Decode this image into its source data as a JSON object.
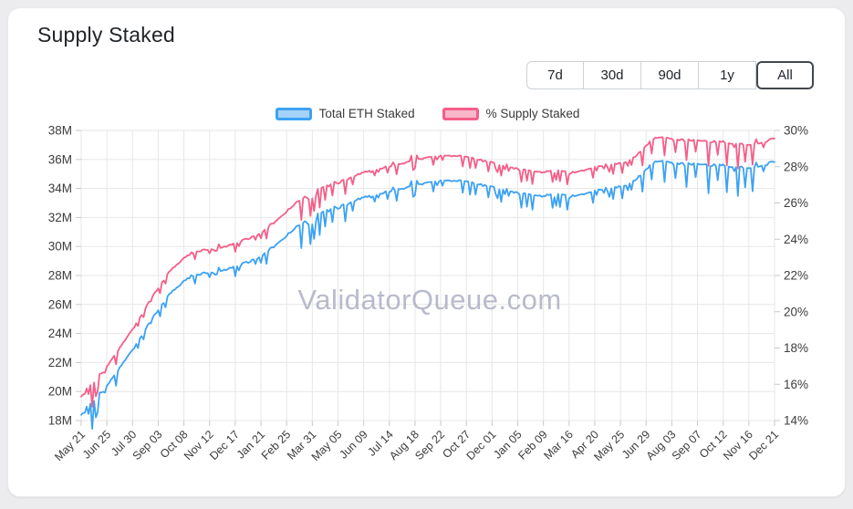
{
  "header": {
    "title": "Supply Staked",
    "active_range": "All",
    "ranges": [
      {
        "label": "7d"
      },
      {
        "label": "30d"
      },
      {
        "label": "90d"
      },
      {
        "label": "1y"
      },
      {
        "label": "All"
      }
    ]
  },
  "watermark": "ValidatorQueue.com",
  "colors": {
    "background": "#ececee",
    "card": "#ffffff",
    "grid": "#e7e7e7",
    "tick": "#c9c9c9",
    "axis_text": "#3c3c3c",
    "active_button_border": "#42474e",
    "blue_line": "#3ba2f4",
    "blue_legend_fill": "#a5d2f8",
    "pink_line": "#f45e88",
    "pink_legend_fill": "#f8b6c9",
    "watermark": "#a7abbf"
  },
  "chart_data": {
    "type": "line",
    "title": "Supply Staked",
    "grid": true,
    "legend_position": "top",
    "x_unit": "days_since_first_label",
    "x_span_days": 945,
    "x_label_interval_days": 35,
    "x_labels": [
      "May 21",
      "Jun 25",
      "Jul 30",
      "Sep 03",
      "Oct 08",
      "Nov 12",
      "Dec 17",
      "Jan 21",
      "Feb 25",
      "Mar 31",
      "May 05",
      "Jun 09",
      "Jul 14",
      "Aug 18",
      "Sep 22",
      "Oct 27",
      "Dec 01",
      "Jan 05",
      "Feb 09",
      "Mar 16",
      "Apr 20",
      "May 25",
      "Jun 29",
      "Aug 03",
      "Sep 07",
      "Oct 12",
      "Nov 16",
      "Dec 21"
    ],
    "y_left": {
      "min": 18,
      "max": 38,
      "tick_step": 2,
      "tick_labels": [
        "18M",
        "20M",
        "22M",
        "24M",
        "26M",
        "28M",
        "30M",
        "32M",
        "34M",
        "36M",
        "38M"
      ]
    },
    "y_right": {
      "min": 14,
      "max": 30,
      "tick_step": 2,
      "tick_labels": [
        "14%",
        "16%",
        "18%",
        "20%",
        "22%",
        "24%",
        "26%",
        "28%",
        "30%"
      ]
    },
    "series": [
      {
        "name": "Total ETH Staked",
        "axis": "left",
        "unit": "M ETH",
        "line_color": "#3ba2f4",
        "legend_fill": "#a5d2f8",
        "points": [
          [
            0,
            18.45
          ],
          [
            6,
            18.8
          ],
          [
            12,
            19.15
          ],
          [
            18,
            19.3
          ],
          [
            24,
            19.8
          ],
          [
            35,
            20.4
          ],
          [
            45,
            21.1
          ],
          [
            55,
            21.8
          ],
          [
            70,
            22.9
          ],
          [
            82,
            23.8
          ],
          [
            95,
            24.9
          ],
          [
            105,
            25.6
          ],
          [
            118,
            26.6
          ],
          [
            130,
            27.2
          ],
          [
            140,
            27.6
          ],
          [
            150,
            27.95
          ],
          [
            160,
            28.1
          ],
          [
            175,
            28.2
          ],
          [
            190,
            28.3
          ],
          [
            200,
            28.45
          ],
          [
            210,
            28.6
          ],
          [
            222,
            28.85
          ],
          [
            235,
            29.05
          ],
          [
            245,
            29.3
          ],
          [
            258,
            29.8
          ],
          [
            270,
            30.3
          ],
          [
            280,
            30.8
          ],
          [
            292,
            31.3
          ],
          [
            305,
            31.8
          ],
          [
            315,
            32.1
          ],
          [
            328,
            32.35
          ],
          [
            340,
            32.55
          ],
          [
            350,
            32.7
          ],
          [
            362,
            32.95
          ],
          [
            375,
            33.2
          ],
          [
            385,
            33.4
          ],
          [
            398,
            33.55
          ],
          [
            410,
            33.7
          ],
          [
            420,
            33.8
          ],
          [
            432,
            33.95
          ],
          [
            445,
            34.15
          ],
          [
            455,
            34.3
          ],
          [
            468,
            34.4
          ],
          [
            480,
            34.45
          ],
          [
            490,
            34.5
          ],
          [
            502,
            34.55
          ],
          [
            512,
            34.55
          ],
          [
            525,
            34.45
          ],
          [
            538,
            34.35
          ],
          [
            550,
            34.2
          ],
          [
            560,
            34.1
          ],
          [
            572,
            33.9
          ],
          [
            582,
            33.8
          ],
          [
            595,
            33.7
          ],
          [
            608,
            33.6
          ],
          [
            620,
            33.55
          ],
          [
            630,
            33.5
          ],
          [
            640,
            33.55
          ],
          [
            650,
            33.6
          ],
          [
            658,
            33.55
          ],
          [
            665,
            33.45
          ],
          [
            672,
            33.5
          ],
          [
            680,
            33.6
          ],
          [
            690,
            33.75
          ],
          [
            700,
            33.85
          ],
          [
            710,
            33.95
          ],
          [
            722,
            34.05
          ],
          [
            735,
            34.1
          ],
          [
            745,
            34.25
          ],
          [
            755,
            34.55
          ],
          [
            762,
            34.9
          ],
          [
            770,
            35.3
          ],
          [
            776,
            35.6
          ],
          [
            782,
            35.8
          ],
          [
            790,
            35.85
          ],
          [
            805,
            35.75
          ],
          [
            818,
            35.7
          ],
          [
            830,
            35.7
          ],
          [
            840,
            35.7
          ],
          [
            852,
            35.65
          ],
          [
            865,
            35.6
          ],
          [
            875,
            35.6
          ],
          [
            888,
            35.5
          ],
          [
            900,
            35.45
          ],
          [
            910,
            35.45
          ],
          [
            920,
            35.5
          ],
          [
            930,
            35.6
          ],
          [
            938,
            35.75
          ],
          [
            945,
            35.9
          ]
        ]
      },
      {
        "name": "% Supply Staked",
        "axis": "right",
        "unit": "%",
        "line_color": "#f45e88",
        "legend_fill": "#f8b6c9",
        "points": [
          [
            0,
            15.36
          ],
          [
            6,
            15.65
          ],
          [
            12,
            15.94
          ],
          [
            18,
            16.07
          ],
          [
            24,
            16.48
          ],
          [
            35,
            16.98
          ],
          [
            45,
            17.56
          ],
          [
            55,
            18.14
          ],
          [
            70,
            19.05
          ],
          [
            82,
            19.8
          ],
          [
            95,
            20.71
          ],
          [
            105,
            21.29
          ],
          [
            118,
            22.12
          ],
          [
            130,
            22.62
          ],
          [
            140,
            22.95
          ],
          [
            150,
            23.23
          ],
          [
            160,
            23.36
          ],
          [
            175,
            23.44
          ],
          [
            190,
            23.52
          ],
          [
            200,
            23.64
          ],
          [
            210,
            23.76
          ],
          [
            222,
            23.97
          ],
          [
            235,
            24.13
          ],
          [
            245,
            24.33
          ],
          [
            258,
            24.75
          ],
          [
            270,
            25.16
          ],
          [
            280,
            25.57
          ],
          [
            292,
            25.98
          ],
          [
            305,
            26.39
          ],
          [
            315,
            26.64
          ],
          [
            328,
            26.84
          ],
          [
            340,
            27.01
          ],
          [
            350,
            27.13
          ],
          [
            362,
            27.33
          ],
          [
            375,
            27.53
          ],
          [
            385,
            27.7
          ],
          [
            398,
            27.82
          ],
          [
            410,
            27.94
          ],
          [
            420,
            28.02
          ],
          [
            432,
            28.14
          ],
          [
            445,
            28.3
          ],
          [
            455,
            28.42
          ],
          [
            468,
            28.5
          ],
          [
            480,
            28.54
          ],
          [
            490,
            28.58
          ],
          [
            502,
            28.61
          ],
          [
            512,
            28.61
          ],
          [
            525,
            28.52
          ],
          [
            538,
            28.44
          ],
          [
            550,
            28.31
          ],
          [
            560,
            28.23
          ],
          [
            572,
            28.06
          ],
          [
            582,
            27.97
          ],
          [
            595,
            27.88
          ],
          [
            608,
            27.8
          ],
          [
            620,
            27.75
          ],
          [
            630,
            27.71
          ],
          [
            640,
            27.75
          ],
          [
            650,
            27.79
          ],
          [
            658,
            27.74
          ],
          [
            665,
            27.66
          ],
          [
            672,
            27.7
          ],
          [
            680,
            27.78
          ],
          [
            690,
            27.9
          ],
          [
            700,
            27.98
          ],
          [
            710,
            28.06
          ],
          [
            722,
            28.14
          ],
          [
            735,
            28.17
          ],
          [
            745,
            28.29
          ],
          [
            755,
            28.54
          ],
          [
            762,
            28.83
          ],
          [
            770,
            29.15
          ],
          [
            776,
            29.4
          ],
          [
            782,
            29.56
          ],
          [
            790,
            29.6
          ],
          [
            805,
            29.52
          ],
          [
            818,
            29.47
          ],
          [
            830,
            29.47
          ],
          [
            840,
            29.46
          ],
          [
            852,
            29.42
          ],
          [
            865,
            29.37
          ],
          [
            875,
            29.37
          ],
          [
            888,
            29.28
          ],
          [
            900,
            29.24
          ],
          [
            910,
            29.23
          ],
          [
            920,
            29.27
          ],
          [
            930,
            29.35
          ],
          [
            938,
            29.47
          ],
          [
            945,
            29.6
          ]
        ]
      }
    ],
    "noise_spikes": [
      [
        15,
        0.9
      ],
      [
        19,
        0.7
      ],
      [
        23,
        0.6
      ],
      [
        48,
        0.45
      ],
      [
        108,
        0.35
      ],
      [
        210,
        0.3
      ],
      [
        252,
        0.4
      ],
      [
        300,
        0.5
      ],
      [
        312,
        0.9
      ],
      [
        318,
        0.7
      ],
      [
        326,
        0.85
      ],
      [
        333,
        0.6
      ],
      [
        342,
        0.5
      ],
      [
        360,
        0.4
      ],
      [
        430,
        0.45
      ],
      [
        452,
        0.5
      ],
      [
        520,
        0.4
      ],
      [
        556,
        0.45
      ],
      [
        600,
        0.5
      ],
      [
        614,
        0.6
      ],
      [
        648,
        0.55
      ],
      [
        662,
        0.5
      ],
      [
        698,
        0.45
      ],
      [
        724,
        0.4
      ],
      [
        764,
        0.7
      ],
      [
        778,
        0.6
      ],
      [
        796,
        0.8
      ],
      [
        810,
        0.6
      ],
      [
        824,
        0.9
      ],
      [
        838,
        0.5
      ],
      [
        856,
        0.85
      ],
      [
        868,
        0.6
      ],
      [
        880,
        1.0
      ],
      [
        894,
        0.6
      ],
      [
        906,
        0.8
      ],
      [
        916,
        0.5
      ]
    ]
  }
}
